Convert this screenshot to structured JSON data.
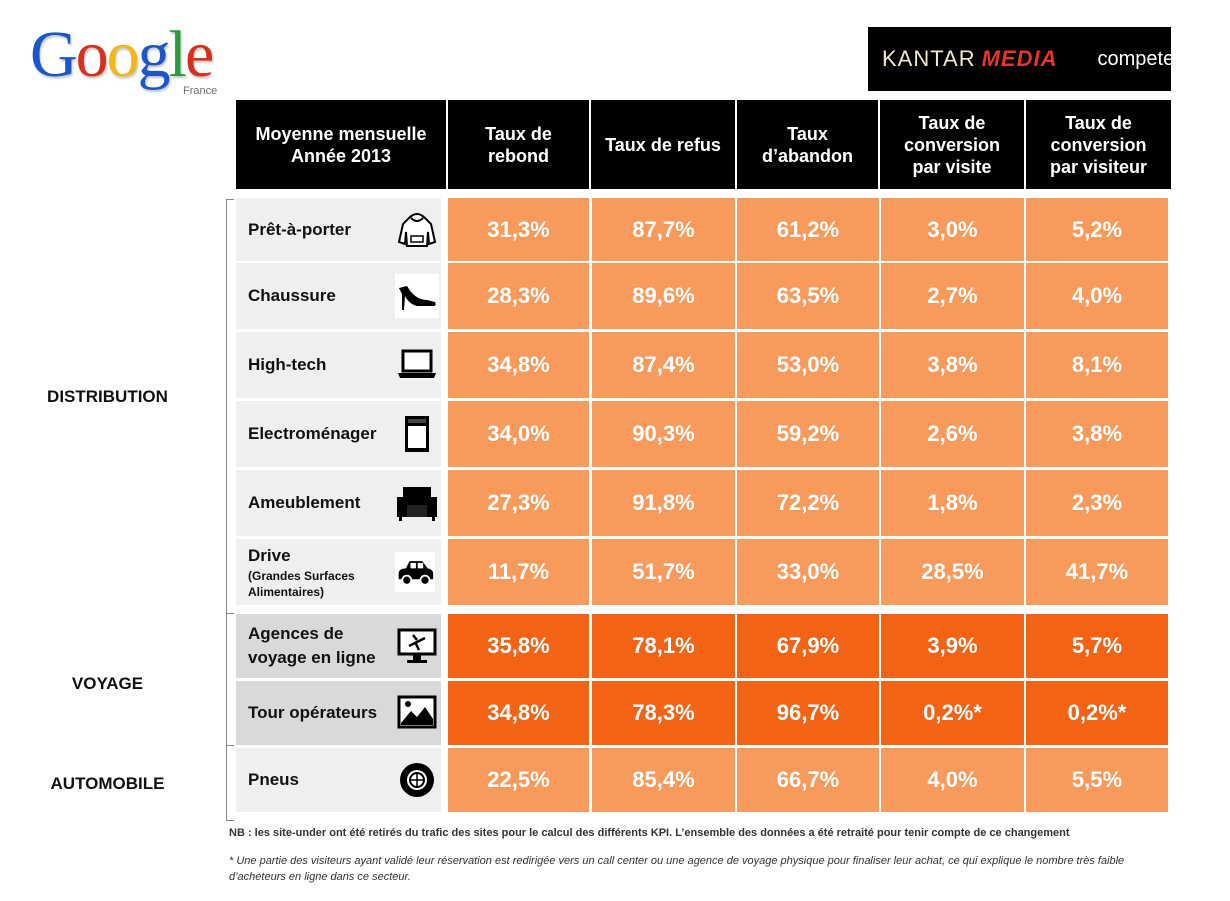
{
  "logos": {
    "google_text": "Google",
    "google_sub": "France",
    "kantar": "KANTAR",
    "kantar_media": "MEDIA",
    "compete": "compete"
  },
  "header": {
    "first": "Moyenne mensuelle\nAnnée 2013",
    "columns": [
      "Taux de\nrebond",
      "Taux de refus",
      "Taux\nd’abandon",
      "Taux de\nconversion\npar visite",
      "Taux de\nconversion\npar visiteur"
    ]
  },
  "sections": {
    "distribution": "DISTRIBUTION",
    "voyage": "VOYAGE",
    "automobile": "AUTOMOBILE"
  },
  "rows": [
    {
      "label": "Prêt-à-porter",
      "sub": "",
      "icon": "hoodie-icon",
      "values": [
        "31,3%",
        "87,7%",
        "61,2%",
        "3,0%",
        "5,2%"
      ]
    },
    {
      "label": "Chaussure",
      "sub": "",
      "icon": "high-heel-icon",
      "values": [
        "28,3%",
        "89,6%",
        "63,5%",
        "2,7%",
        "4,0%"
      ]
    },
    {
      "label": "High-tech",
      "sub": "",
      "icon": "laptop-icon",
      "values": [
        "34,8%",
        "87,4%",
        "53,0%",
        "3,8%",
        "8,1%"
      ]
    },
    {
      "label": "Electroménager",
      "sub": "",
      "icon": "oven-icon",
      "values": [
        "34,0%",
        "90,3%",
        "59,2%",
        "2,6%",
        "3,8%"
      ]
    },
    {
      "label": "Ameublement",
      "sub": "",
      "icon": "armchair-icon",
      "values": [
        "27,3%",
        "91,8%",
        "72,2%",
        "1,8%",
        "2,3%"
      ]
    },
    {
      "label": "Drive",
      "sub": "(Grandes Surfaces\nAlimentaires)",
      "icon": "car-icon",
      "values": [
        "11,7%",
        "51,7%",
        "33,0%",
        "28,5%",
        "41,7%"
      ]
    },
    {
      "label": "Agences de\nvoyage en ligne",
      "sub": "",
      "icon": "plane-screen-icon",
      "values": [
        "35,8%",
        "78,1%",
        "67,9%",
        "3,9%",
        "5,7%"
      ]
    },
    {
      "label": "Tour opérateurs",
      "sub": "",
      "icon": "landscape-icon",
      "values": [
        "34,8%",
        "78,3%",
        "96,7%",
        "0,2%*",
        "0,2%*"
      ]
    },
    {
      "label": "Pneus",
      "sub": "",
      "icon": "tire-icon",
      "values": [
        "22,5%",
        "85,4%",
        "66,7%",
        "4,0%",
        "5,5%"
      ]
    }
  ],
  "notes": {
    "nb": "NB : les site-under ont été retirés du trafic des sites pour le calcul des différents KPI. L’ensemble des données a été retraité pour tenir compte de ce changement",
    "footnote": "* Une partie des visiteurs ayant validé leur réservation est redirigée vers un call center  ou une agence de voyage physique pour finaliser leur achat, ce qui explique le nombre très faible d’acheteurs en ligne dans ce secteur."
  },
  "colors": {
    "light_orange": "#f79a5c",
    "dark_orange": "#f26316"
  }
}
